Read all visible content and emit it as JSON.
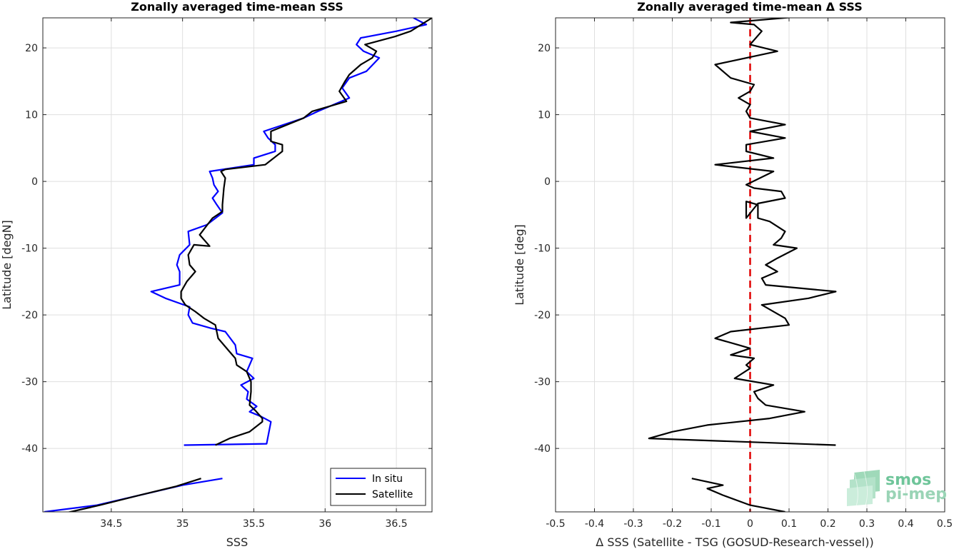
{
  "chart_data": [
    {
      "type": "line",
      "title": "Zonally averaged time-mean SSS",
      "xlabel": "SSS",
      "ylabel": "Latitude [degN]",
      "xlim": [
        34.02,
        36.75
      ],
      "ylim": [
        -49.5,
        24.5
      ],
      "xticks": [
        34.5,
        35,
        35.5,
        36,
        36.5
      ],
      "xtick_labels": [
        "34.5",
        "35",
        "35.5",
        "36",
        "36.5"
      ],
      "yticks": [
        -40,
        -30,
        -20,
        -10,
        0,
        10,
        20
      ],
      "ytick_labels": [
        "-40",
        "-30",
        "-20",
        "-10",
        "0",
        "10",
        "20"
      ],
      "grid": true,
      "legend": {
        "position": "bottom-right",
        "entries": [
          "In situ",
          "Satellite"
        ]
      },
      "series": [
        {
          "name": "In situ",
          "color": "#0000ff",
          "segments": [
            [
              [
                34.03,
                -49.5
              ],
              [
                34.4,
                -48.5
              ],
              [
                34.8,
                -46.5
              ],
              [
                35.0,
                -45.5
              ],
              [
                35.28,
                -44.5
              ]
            ],
            [
              [
                35.01,
                -39.5
              ],
              [
                35.59,
                -39.3
              ],
              [
                35.62,
                -36.0
              ],
              [
                35.55,
                -35.2
              ],
              [
                35.47,
                -34.5
              ],
              [
                35.52,
                -33.7
              ],
              [
                35.45,
                -32.6
              ],
              [
                35.46,
                -31.5
              ],
              [
                35.41,
                -30.5
              ],
              [
                35.5,
                -29.5
              ],
              [
                35.45,
                -28.5
              ],
              [
                35.49,
                -26.5
              ],
              [
                35.38,
                -25.8
              ],
              [
                35.37,
                -24.5
              ],
              [
                35.3,
                -22.5
              ],
              [
                35.2,
                -22.0
              ],
              [
                35.07,
                -21.2
              ],
              [
                35.04,
                -20.0
              ],
              [
                35.05,
                -18.8
              ],
              [
                34.88,
                -17.5
              ],
              [
                34.78,
                -16.5
              ],
              [
                34.98,
                -15.5
              ],
              [
                34.98,
                -13.5
              ],
              [
                34.96,
                -12.5
              ],
              [
                34.98,
                -11.0
              ],
              [
                35.05,
                -9.5
              ],
              [
                35.04,
                -7.5
              ],
              [
                35.17,
                -6.5
              ],
              [
                35.28,
                -4.7
              ],
              [
                35.24,
                -3.5
              ],
              [
                35.21,
                -2.5
              ],
              [
                35.25,
                -1.5
              ],
              [
                35.22,
                -0.5
              ],
              [
                35.21,
                0.5
              ],
              [
                35.19,
                1.5
              ],
              [
                35.5,
                2.5
              ],
              [
                35.5,
                3.5
              ],
              [
                35.65,
                4.5
              ],
              [
                35.65,
                5.5
              ],
              [
                35.6,
                6.5
              ],
              [
                35.57,
                7.5
              ],
              [
                35.85,
                9.5
              ],
              [
                35.95,
                10.5
              ],
              [
                36.17,
                12.5
              ],
              [
                36.12,
                14.0
              ],
              [
                36.17,
                15.5
              ],
              [
                36.29,
                16.5
              ],
              [
                36.38,
                18.5
              ],
              [
                36.27,
                19.5
              ],
              [
                36.22,
                20.5
              ],
              [
                36.25,
                21.5
              ],
              [
                36.5,
                22.5
              ],
              [
                36.71,
                23.5
              ],
              [
                36.62,
                24.5
              ]
            ]
          ]
        },
        {
          "name": "Satellite",
          "color": "#000000",
          "segments": [
            [
              [
                34.11,
                -50.0
              ],
              [
                34.42,
                -48.5
              ],
              [
                34.7,
                -47.0
              ],
              [
                34.95,
                -45.7
              ],
              [
                35.13,
                -44.5
              ]
            ],
            [
              [
                35.23,
                -39.5
              ],
              [
                35.33,
                -38.5
              ],
              [
                35.47,
                -37.5
              ],
              [
                35.56,
                -36.0
              ],
              [
                35.56,
                -35.5
              ],
              [
                35.51,
                -34.3
              ],
              [
                35.47,
                -33.5
              ],
              [
                35.48,
                -31.5
              ],
              [
                35.48,
                -30.0
              ],
              [
                35.45,
                -28.5
              ],
              [
                35.38,
                -27.5
              ],
              [
                35.37,
                -26.5
              ],
              [
                35.33,
                -25.5
              ],
              [
                35.25,
                -23.5
              ],
              [
                35.23,
                -21.5
              ],
              [
                35.15,
                -20.5
              ],
              [
                35.09,
                -19.5
              ],
              [
                35.02,
                -18.5
              ],
              [
                34.99,
                -17.5
              ],
              [
                34.99,
                -16.5
              ],
              [
                35.03,
                -15.0
              ],
              [
                35.09,
                -13.5
              ],
              [
                35.05,
                -12.5
              ],
              [
                35.04,
                -11.0
              ],
              [
                35.08,
                -9.5
              ],
              [
                35.19,
                -9.7
              ],
              [
                35.12,
                -8.0
              ],
              [
                35.21,
                -5.5
              ],
              [
                35.28,
                -4.5
              ],
              [
                35.28,
                -3.5
              ],
              [
                35.29,
                -1.0
              ],
              [
                35.3,
                0.5
              ],
              [
                35.27,
                1.5
              ],
              [
                35.3,
                1.8
              ],
              [
                35.58,
                2.5
              ],
              [
                35.7,
                4.5
              ],
              [
                35.7,
                5.5
              ],
              [
                35.62,
                6.0
              ],
              [
                35.62,
                7.5
              ],
              [
                35.85,
                9.5
              ],
              [
                35.91,
                10.5
              ],
              [
                36.15,
                12.0
              ],
              [
                36.1,
                13.5
              ],
              [
                36.14,
                15.0
              ],
              [
                36.17,
                16.0
              ],
              [
                36.25,
                17.5
              ],
              [
                36.33,
                18.5
              ],
              [
                36.36,
                19.5
              ],
              [
                36.28,
                20.5
              ],
              [
                36.49,
                21.7
              ],
              [
                36.6,
                22.5
              ],
              [
                36.75,
                24.5
              ]
            ]
          ]
        }
      ]
    },
    {
      "type": "line",
      "title": "Zonally averaged time-mean Δ SSS",
      "xlabel": "Δ SSS (Satellite - TSG (GOSUD-Research-vessel))",
      "ylabel": "Latitude [deg]",
      "xlim": [
        -0.5,
        0.5
      ],
      "ylim": [
        -49.5,
        24.5
      ],
      "xticks": [
        -0.5,
        -0.4,
        -0.3,
        -0.2,
        -0.1,
        0,
        0.1,
        0.2,
        0.3,
        0.4,
        0.5
      ],
      "xtick_labels": [
        "-0.5",
        "-0.4",
        "-0.3",
        "-0.2",
        "-0.1",
        "0",
        "0.1",
        "0.2",
        "0.3",
        "0.4",
        "0.5"
      ],
      "yticks": [
        -40,
        -30,
        -20,
        -10,
        0,
        10,
        20
      ],
      "ytick_labels": [
        "-40",
        "-30",
        "-20",
        "-10",
        "0",
        "10",
        "20"
      ],
      "grid": true,
      "reference_line": {
        "x": 0,
        "color": "#e00000",
        "style": "dashed"
      },
      "series": [
        {
          "name": "",
          "color": "#000000",
          "segments": [
            [
              [
                -0.15,
                -44.5
              ],
              [
                -0.07,
                -45.5
              ],
              [
                -0.11,
                -46.0
              ],
              [
                -0.07,
                -47.0
              ],
              [
                0.0,
                -48.5
              ],
              [
                0.09,
                -49.5
              ]
            ],
            [
              [
                0.22,
                -39.5
              ],
              [
                -0.26,
                -38.5
              ],
              [
                -0.2,
                -37.5
              ],
              [
                -0.11,
                -36.5
              ],
              [
                0.05,
                -35.5
              ],
              [
                0.14,
                -34.5
              ],
              [
                0.04,
                -33.5
              ],
              [
                0.02,
                -32.5
              ],
              [
                0.01,
                -31.5
              ],
              [
                0.06,
                -30.5
              ],
              [
                -0.04,
                -29.5
              ],
              [
                0.0,
                -28.0
              ],
              [
                -0.01,
                -27.5
              ],
              [
                0.01,
                -26.5
              ],
              [
                -0.05,
                -26.0
              ],
              [
                0.0,
                -25.0
              ],
              [
                -0.03,
                -24.5
              ],
              [
                -0.09,
                -23.5
              ],
              [
                -0.05,
                -22.5
              ],
              [
                0.1,
                -21.5
              ],
              [
                0.09,
                -20.5
              ],
              [
                0.03,
                -18.5
              ],
              [
                0.15,
                -17.5
              ],
              [
                0.22,
                -16.5
              ],
              [
                0.04,
                -15.5
              ],
              [
                0.03,
                -14.5
              ],
              [
                0.07,
                -13.5
              ],
              [
                0.04,
                -12.5
              ],
              [
                0.07,
                -11.5
              ],
              [
                0.12,
                -10.0
              ],
              [
                0.06,
                -9.5
              ],
              [
                0.08,
                -8.5
              ],
              [
                0.09,
                -7.5
              ],
              [
                0.05,
                -6.0
              ],
              [
                0.02,
                -5.5
              ],
              [
                0.02,
                -3.5
              ],
              [
                -0.01,
                -3.0
              ],
              [
                -0.01,
                -5.5
              ],
              [
                0.02,
                -3.3
              ],
              [
                0.09,
                -2.5
              ],
              [
                0.08,
                -1.5
              ],
              [
                0.01,
                -1.0
              ],
              [
                -0.01,
                -0.5
              ],
              [
                0.06,
                1.5
              ],
              [
                -0.09,
                2.5
              ],
              [
                0.06,
                3.5
              ],
              [
                -0.01,
                4.5
              ],
              [
                -0.01,
                5.5
              ],
              [
                0.09,
                6.5
              ],
              [
                0.0,
                7.5
              ],
              [
                0.09,
                8.5
              ],
              [
                0.0,
                9.5
              ],
              [
                -0.01,
                10.5
              ],
              [
                0.0,
                11.5
              ],
              [
                -0.03,
                12.5
              ],
              [
                0.0,
                13.5
              ],
              [
                0.01,
                14.5
              ],
              [
                -0.05,
                15.5
              ],
              [
                -0.09,
                17.5
              ],
              [
                0.07,
                19.5
              ],
              [
                0.0,
                20.5
              ],
              [
                0.03,
                22.5
              ],
              [
                0.01,
                23.5
              ],
              [
                -0.05,
                23.8
              ],
              [
                0.15,
                24.8
              ]
            ]
          ]
        }
      ]
    }
  ],
  "logo": {
    "line1": "smos",
    "line2": "pi-mep"
  }
}
